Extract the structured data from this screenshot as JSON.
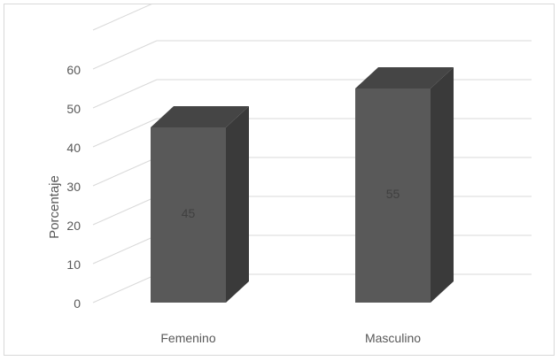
{
  "chart_data": {
    "type": "bar",
    "style": "3d-column",
    "categories": [
      "Femenino",
      "Masculino"
    ],
    "values": [
      45,
      55
    ],
    "data_labels": [
      "45",
      "55"
    ],
    "title": "",
    "xlabel": "",
    "ylabel": "Porcentaje",
    "ylim": [
      0,
      60
    ],
    "yticks": [
      "0",
      "10",
      "20",
      "30",
      "40",
      "50",
      "60"
    ],
    "grid": true,
    "legend": "none",
    "colors": {
      "bar_front": "#595959",
      "bar_side": "#3a3a3a",
      "bar_top": "#454545",
      "gridline": "#d9d9d9",
      "tick_text": "#595959",
      "data_label": "#404040"
    }
  }
}
